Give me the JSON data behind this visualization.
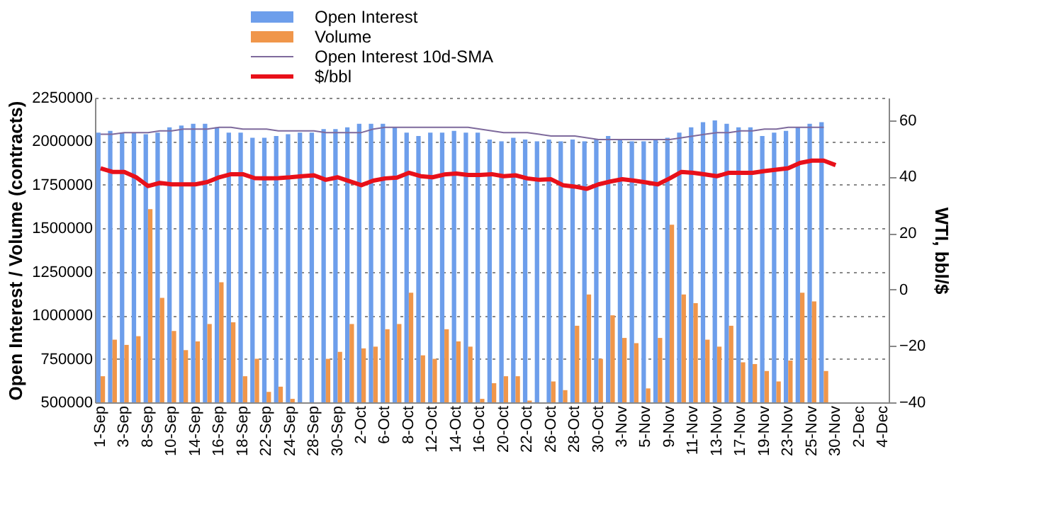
{
  "chart_data": {
    "type": "bar",
    "legend": "top",
    "grid": "y",
    "ylabel": "Open Interest / Volume (contracts)",
    "y2label": "WTI, bbl/$",
    "categories": [
      "1-Sep",
      null,
      "3-Sep",
      null,
      "8-Sep",
      null,
      "10-Sep",
      null,
      "14-Sep",
      null,
      "16-Sep",
      null,
      "18-Sep",
      null,
      "22-Sep",
      null,
      "24-Sep",
      null,
      "28-Sep",
      null,
      "30-Sep",
      null,
      "2-Oct",
      null,
      "6-Oct",
      null,
      "8-Oct",
      null,
      "12-Oct",
      null,
      "14-Oct",
      null,
      "16-Oct",
      null,
      "20-Oct",
      null,
      "22-Oct",
      null,
      "26-Oct",
      null,
      "28-Oct",
      null,
      "30-Oct",
      null,
      "3-Nov",
      null,
      "5-Nov",
      null,
      "9-Nov",
      null,
      "11-Nov",
      null,
      "13-Nov",
      null,
      "17-Nov",
      null,
      "19-Nov",
      null,
      "23-Nov",
      null,
      "25-Nov",
      null,
      "30-Nov",
      null,
      "2-Dec",
      null,
      "4-Dec"
    ],
    "ylim": [
      500000,
      2250000
    ],
    "yticks": [
      500000,
      750000,
      1000000,
      1250000,
      1500000,
      1750000,
      2000000,
      2250000
    ],
    "y2lim": [
      -40,
      68
    ],
    "y2ticks": [
      -40,
      -20,
      0,
      20,
      40,
      60
    ],
    "series": [
      {
        "name": "Open Interest",
        "color": "#6d9eeb",
        "values": [
          2050000,
          2060000,
          2050000,
          2050000,
          2040000,
          2050000,
          2080000,
          2090000,
          2100000,
          2100000,
          2080000,
          2050000,
          2050000,
          2020000,
          2020000,
          2030000,
          2040000,
          2050000,
          2050000,
          2070000,
          2070000,
          2080000,
          2100000,
          2100000,
          2100000,
          2080000,
          2050000,
          2030000,
          2050000,
          2050000,
          2060000,
          2050000,
          2050000,
          2010000,
          2000000,
          2020000,
          2010000,
          2000000,
          2010000,
          2000000,
          2010000,
          2000000,
          2010000,
          2030000,
          2010000,
          2000000,
          2000000,
          2010000,
          2020000,
          2050000,
          2080000,
          2110000,
          2120000,
          2100000,
          2080000,
          2080000,
          2030000,
          2050000,
          2060000,
          2080000,
          2100000,
          2110000,
          null,
          null,
          null,
          null,
          null
        ]
      },
      {
        "name": "Volume",
        "color": "#f0964a",
        "values": [
          650000,
          860000,
          830000,
          880000,
          1610000,
          1100000,
          910000,
          800000,
          850000,
          950000,
          1190000,
          960000,
          650000,
          750000,
          560000,
          590000,
          520000,
          null,
          null,
          750000,
          790000,
          950000,
          810000,
          820000,
          920000,
          950000,
          1130000,
          770000,
          750000,
          920000,
          850000,
          820000,
          520000,
          610000,
          650000,
          650000,
          510000,
          null,
          620000,
          570000,
          940000,
          1120000,
          750000,
          1000000,
          870000,
          840000,
          580000,
          870000,
          1520000,
          1120000,
          1070000,
          860000,
          820000,
          940000,
          730000,
          720000,
          680000,
          620000,
          740000,
          1130000,
          1080000,
          680000,
          null,
          null,
          null,
          null,
          null
        ]
      },
      {
        "name": "Open Interest 10d-SMA",
        "type": "line",
        "color": "#7e6a9c",
        "values": [
          2040000,
          2040000,
          2050000,
          2050000,
          2050000,
          2060000,
          2060000,
          2070000,
          2070000,
          2070000,
          2080000,
          2080000,
          2070000,
          2070000,
          2070000,
          2060000,
          2060000,
          2060000,
          2060000,
          2050000,
          2050000,
          2050000,
          2050000,
          2070000,
          2080000,
          2080000,
          2080000,
          2080000,
          2080000,
          2080000,
          2080000,
          2080000,
          2070000,
          2060000,
          2050000,
          2050000,
          2050000,
          2040000,
          2030000,
          2030000,
          2030000,
          2020000,
          2010000,
          2010000,
          2010000,
          2010000,
          2010000,
          2010000,
          2010000,
          2020000,
          2030000,
          2040000,
          2050000,
          2050000,
          2060000,
          2060000,
          2070000,
          2070000,
          2080000,
          2080000,
          2080000,
          2080000,
          null,
          null,
          null,
          null,
          null
        ]
      },
      {
        "name": "$/bbl",
        "type": "line",
        "axis": "y2",
        "color": "#e8101a",
        "values": [
          43.0,
          41.7,
          41.7,
          39.8,
          36.7,
          37.8,
          37.3,
          37.3,
          37.3,
          38.1,
          39.8,
          40.9,
          40.9,
          39.5,
          39.4,
          39.5,
          39.8,
          40.2,
          40.5,
          38.9,
          39.8,
          38.4,
          37.0,
          38.6,
          39.4,
          39.7,
          41.4,
          40.2,
          39.8,
          40.8,
          41.1,
          40.6,
          40.6,
          40.9,
          40.2,
          40.5,
          39.4,
          38.9,
          39.1,
          37.0,
          36.5,
          35.7,
          37.3,
          38.3,
          39.1,
          38.6,
          38.0,
          37.3,
          39.4,
          41.7,
          41.4,
          40.8,
          40.2,
          41.4,
          41.4,
          41.4,
          42.0,
          42.5,
          43.0,
          44.9,
          45.7,
          45.7,
          44.1,
          null,
          null,
          null,
          null
        ]
      }
    ]
  }
}
